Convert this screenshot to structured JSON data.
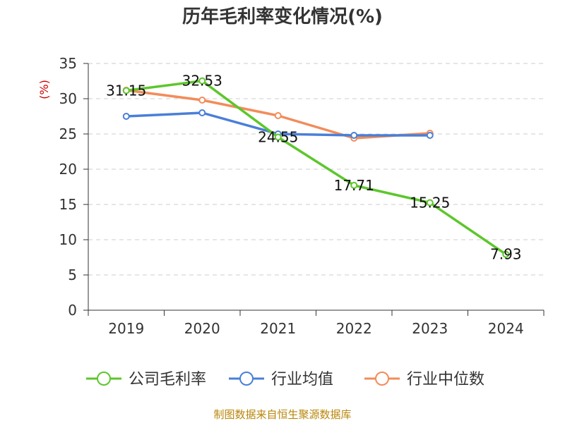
{
  "chart_data": {
    "type": "line",
    "title": "历年毛利率变化情况(%)",
    "ylabel": "(%)",
    "xlabel": "",
    "categories": [
      "2019",
      "2020",
      "2021",
      "2022",
      "2023",
      "2024"
    ],
    "ylim": [
      0,
      35
    ],
    "yticks": [
      0,
      5,
      10,
      15,
      20,
      25,
      30,
      35
    ],
    "grid": true,
    "legend_position": "bottom",
    "series": [
      {
        "name": "公司毛利率",
        "color": "#5cc72c",
        "values": [
          31.15,
          32.53,
          24.55,
          17.71,
          15.25,
          7.93
        ],
        "labels": [
          "31.15",
          "32.53",
          "24.55",
          "17.71",
          "15.25",
          "7.93"
        ]
      },
      {
        "name": "行业均值",
        "color": "#4a7fd8",
        "values": [
          27.5,
          28.0,
          25.0,
          24.8,
          24.8,
          null
        ],
        "labels": []
      },
      {
        "name": "行业中位数",
        "color": "#f28c5a",
        "values": [
          31.2,
          29.8,
          27.6,
          24.4,
          25.1,
          null
        ],
        "labels": []
      }
    ]
  },
  "source": "制图数据来自恒生聚源数据库"
}
